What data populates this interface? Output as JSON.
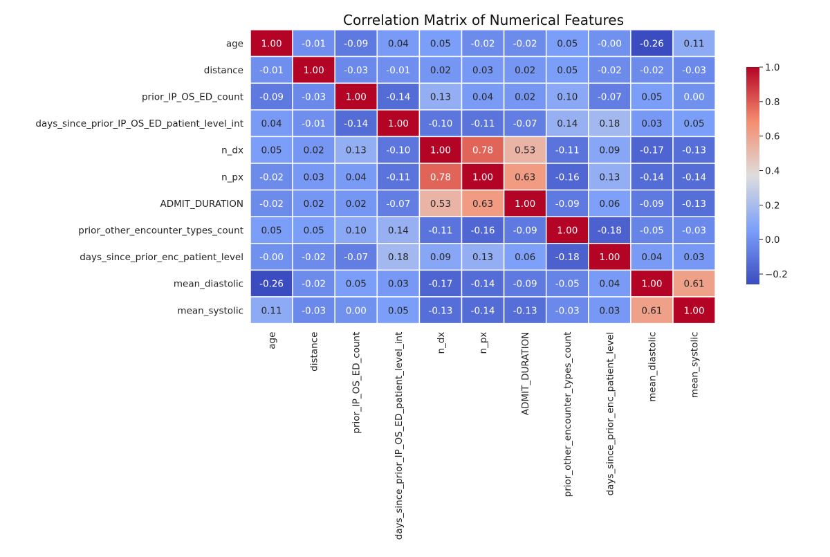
{
  "chart_data": {
    "type": "heatmap",
    "title": "Correlation Matrix of Numerical Features",
    "labels": [
      "age",
      "distance",
      "prior_IP_OS_ED_count",
      "days_since_prior_IP_OS_ED_patient_level_int",
      "n_dx",
      "n_px",
      "ADMIT_DURATION",
      "prior_other_encounter_types_count",
      "days_since_prior_enc_patient_level",
      "mean_diastolic",
      "mean_systolic"
    ],
    "matrix": [
      [
        1.0,
        -0.01,
        -0.09,
        0.04,
        0.05,
        -0.02,
        -0.02,
        0.05,
        -0.0,
        -0.26,
        0.11
      ],
      [
        -0.01,
        1.0,
        -0.03,
        -0.01,
        0.02,
        0.03,
        0.02,
        0.05,
        -0.02,
        -0.02,
        -0.03
      ],
      [
        -0.09,
        -0.03,
        1.0,
        -0.14,
        0.13,
        0.04,
        0.02,
        0.1,
        -0.07,
        0.05,
        0.0
      ],
      [
        0.04,
        -0.01,
        -0.14,
        1.0,
        -0.1,
        -0.11,
        -0.07,
        0.14,
        0.18,
        0.03,
        0.05
      ],
      [
        0.05,
        0.02,
        0.13,
        -0.1,
        1.0,
        0.78,
        0.53,
        -0.11,
        0.09,
        -0.17,
        -0.13
      ],
      [
        -0.02,
        0.03,
        0.04,
        -0.11,
        0.78,
        1.0,
        0.63,
        -0.16,
        0.13,
        -0.14,
        -0.14
      ],
      [
        -0.02,
        0.02,
        0.02,
        -0.07,
        0.53,
        0.63,
        1.0,
        -0.09,
        0.06,
        -0.09,
        -0.13
      ],
      [
        0.05,
        0.05,
        0.1,
        0.14,
        -0.11,
        -0.16,
        -0.09,
        1.0,
        -0.18,
        -0.05,
        -0.03
      ],
      [
        -0.0,
        -0.02,
        -0.07,
        0.18,
        0.09,
        0.13,
        0.06,
        -0.18,
        1.0,
        0.04,
        0.03
      ],
      [
        -0.26,
        -0.02,
        0.05,
        0.03,
        -0.17,
        -0.14,
        -0.09,
        -0.05,
        0.04,
        1.0,
        0.61
      ],
      [
        0.11,
        -0.03,
        0.0,
        0.05,
        -0.13,
        -0.14,
        -0.13,
        -0.03,
        0.03,
        0.61,
        1.0
      ]
    ],
    "value_format": "0.00",
    "colormap": "coolwarm",
    "vmin": -0.26,
    "vmax": 1.0,
    "colorbar": {
      "ticks": [
        1.0,
        0.8,
        0.6,
        0.4,
        0.2,
        0.0,
        -0.2
      ],
      "tick_labels": [
        "1.0",
        "0.8",
        "0.6",
        "0.4",
        "0.2",
        "0.0",
        "−0.2"
      ]
    },
    "colors": {
      "cold": "#3b4cc0",
      "mid": "#dddddd",
      "hot": "#b40426",
      "cell_border": "#ffffff"
    },
    "grid": false,
    "legend": "colorbar-right"
  }
}
